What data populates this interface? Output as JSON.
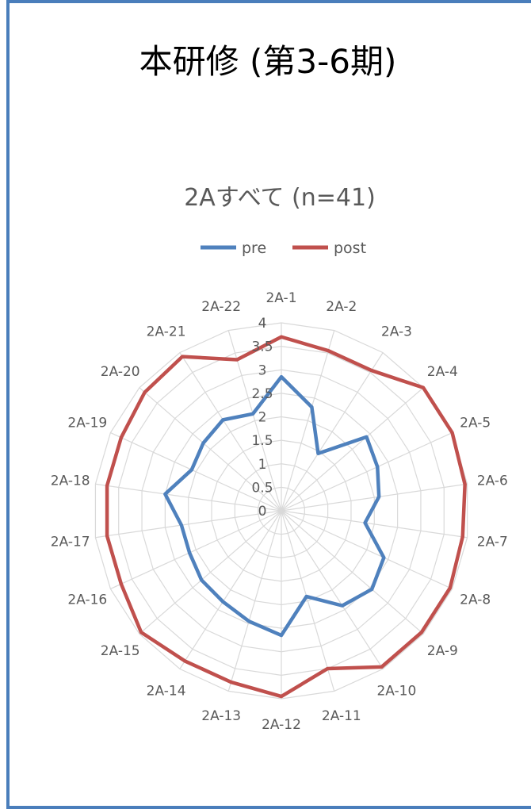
{
  "page": {
    "title": "本研修 (第3-6期)"
  },
  "chart_data": {
    "type": "radar",
    "title": "2Aすべて (n=41)",
    "categories": [
      "2A-1",
      "2A-2",
      "2A-3",
      "2A-4",
      "2A-5",
      "2A-6",
      "2A-7",
      "2A-8",
      "2A-9",
      "2A-10",
      "2A-11",
      "2A-12",
      "2A-13",
      "2A-14",
      "2A-15",
      "2A-16",
      "2A-17",
      "2A-18",
      "2A-19",
      "2A-20",
      "2A-21",
      "2A-22"
    ],
    "rlim": [
      0,
      4
    ],
    "ticks": [
      "0",
      "0.5",
      "1",
      "1.5",
      "2",
      "2.5",
      "3",
      "3.5",
      "4"
    ],
    "tick_values": [
      0,
      0.5,
      1,
      1.5,
      2,
      2.5,
      3,
      3.5,
      4
    ],
    "grid": true,
    "legend_position": "top",
    "series": [
      {
        "name": "pre",
        "color": "#4f81bd",
        "values": [
          2.85,
          2.3,
          1.45,
          2.4,
          2.25,
          2.1,
          1.8,
          2.4,
          2.55,
          2.4,
          1.9,
          2.65,
          2.45,
          2.3,
          2.25,
          2.15,
          2.15,
          2.5,
          2.1,
          2.2,
          2.3,
          2.15
        ]
      },
      {
        "name": "post",
        "color": "#c0504d",
        "values": [
          3.7,
          3.55,
          3.55,
          4.0,
          4.0,
          3.95,
          3.9,
          3.95,
          3.95,
          3.95,
          3.5,
          3.95,
          3.8,
          3.8,
          3.95,
          3.75,
          3.75,
          3.75,
          3.75,
          3.85,
          3.9,
          3.35
        ]
      }
    ]
  }
}
